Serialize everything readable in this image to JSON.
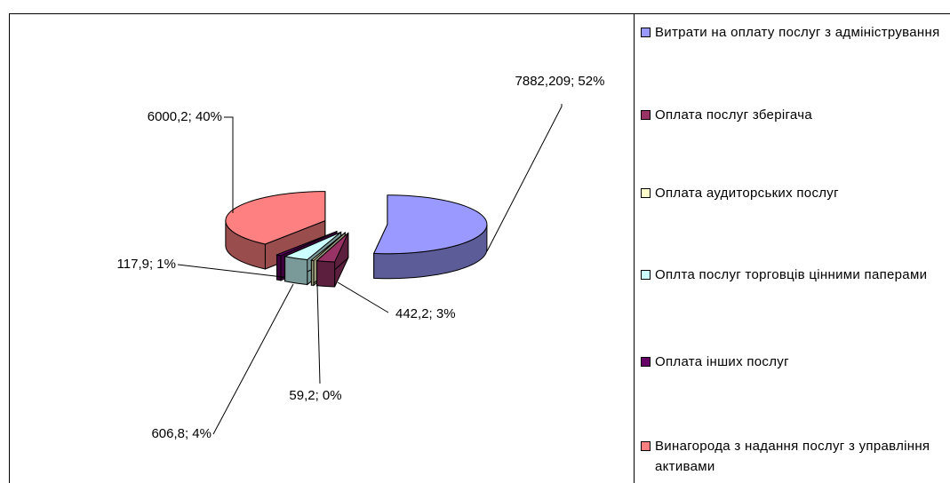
{
  "chart_data": {
    "type": "pie3d",
    "categories": [
      "Витрати на оплату послуг з адміністрування",
      "Оплата послуг зберігача",
      "Оплата аудиторських послуг",
      "Оплта послуг торговців цінними паперами",
      "Оплата інших послуг",
      "Винагорода з надання послуг з управління активами"
    ],
    "values": [
      7882.209,
      442.2,
      59.2,
      606.8,
      117.9,
      6000.2
    ],
    "value_labels": [
      "7882,209; 52%",
      "442,2; 3%",
      "59,2; 0%",
      "606,8; 4%",
      "117,9; 1%",
      "6000,2; 40%"
    ],
    "colors": [
      "#9999ff",
      "#993366",
      "#ffffcc",
      "#ccffff",
      "#660066",
      "#ff8080"
    ],
    "legend": "right"
  }
}
